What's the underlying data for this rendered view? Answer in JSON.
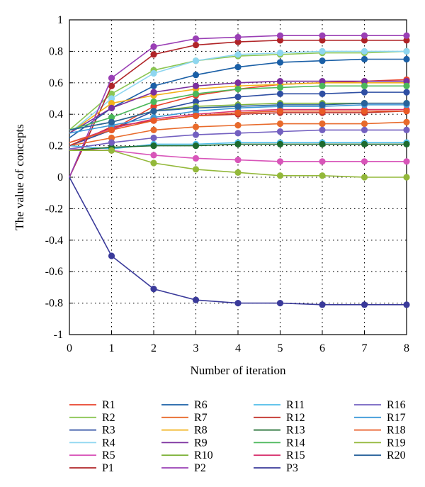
{
  "chart_data": {
    "type": "line",
    "xlabel": "Number of iteration",
    "ylabel": "The value of concepts",
    "xlim": [
      0,
      8
    ],
    "ylim": [
      -1,
      1
    ],
    "x": [
      0,
      1,
      2,
      3,
      4,
      5,
      6,
      7,
      8
    ],
    "x_ticks": [
      "0",
      "1",
      "2",
      "3",
      "4",
      "5",
      "6",
      "7",
      "8"
    ],
    "y_ticks": [
      "1",
      "0.8",
      "0.6",
      "0.4",
      "0.2",
      "0",
      "-0.2",
      "-0.4",
      "-0.6",
      "-0.8",
      "-1"
    ],
    "grid": "dotted",
    "legend_position": "bottom",
    "series": [
      {
        "name": "R1",
        "color": "#e8432b",
        "values": [
          0.2,
          0.3,
          0.45,
          0.52,
          0.56,
          0.59,
          0.6,
          0.61,
          0.62
        ]
      },
      {
        "name": "R2",
        "color": "#8bc653",
        "values": [
          0.3,
          0.53,
          0.68,
          0.74,
          0.77,
          0.78,
          0.79,
          0.79,
          0.8
        ]
      },
      {
        "name": "R3",
        "color": "#2f4fa3",
        "values": [
          0.2,
          0.3,
          0.42,
          0.48,
          0.51,
          0.53,
          0.53,
          0.54,
          0.54
        ]
      },
      {
        "name": "R4",
        "color": "#8ed6f0",
        "values": [
          0.28,
          0.5,
          0.66,
          0.74,
          0.78,
          0.79,
          0.8,
          0.8,
          0.8
        ]
      },
      {
        "name": "R5",
        "color": "#d855b9",
        "values": [
          0.18,
          0.17,
          0.14,
          0.12,
          0.11,
          0.1,
          0.1,
          0.1,
          0.1
        ]
      },
      {
        "name": "P1",
        "color": "#b02427",
        "values": [
          0.0,
          0.58,
          0.78,
          0.84,
          0.86,
          0.87,
          0.87,
          0.87,
          0.87
        ]
      },
      {
        "name": "R6",
        "color": "#1a5fa6",
        "values": [
          0.25,
          0.44,
          0.58,
          0.65,
          0.7,
          0.73,
          0.74,
          0.75,
          0.75
        ]
      },
      {
        "name": "R7",
        "color": "#e86a2b",
        "values": [
          0.2,
          0.25,
          0.3,
          0.32,
          0.33,
          0.34,
          0.34,
          0.34,
          0.35
        ]
      },
      {
        "name": "R8",
        "color": "#f2b21b",
        "values": [
          0.28,
          0.47,
          0.52,
          0.56,
          0.58,
          0.59,
          0.6,
          0.6,
          0.6
        ]
      },
      {
        "name": "R9",
        "color": "#7b2f9e",
        "values": [
          0.28,
          0.44,
          0.54,
          0.58,
          0.6,
          0.61,
          0.61,
          0.61,
          0.61
        ]
      },
      {
        "name": "R10",
        "color": "#7fb33b",
        "values": [
          0.3,
          0.35,
          0.42,
          0.45,
          0.46,
          0.47,
          0.47,
          0.47,
          0.47
        ]
      },
      {
        "name": "P2",
        "color": "#9a3fb5",
        "values": [
          0.0,
          0.63,
          0.83,
          0.88,
          0.89,
          0.9,
          0.9,
          0.9,
          0.9
        ]
      },
      {
        "name": "R11",
        "color": "#4fbde8",
        "values": [
          0.2,
          0.18,
          0.21,
          0.21,
          0.22,
          0.22,
          0.22,
          0.22,
          0.22
        ]
      },
      {
        "name": "R12",
        "color": "#c4342e",
        "values": [
          0.2,
          0.32,
          0.36,
          0.39,
          0.4,
          0.41,
          0.41,
          0.41,
          0.42
        ]
      },
      {
        "name": "R13",
        "color": "#1d6b2e",
        "values": [
          0.17,
          0.19,
          0.2,
          0.2,
          0.21,
          0.21,
          0.21,
          0.21,
          0.21
        ]
      },
      {
        "name": "R14",
        "color": "#4bb85a",
        "values": [
          0.3,
          0.38,
          0.48,
          0.53,
          0.56,
          0.57,
          0.58,
          0.58,
          0.58
        ]
      },
      {
        "name": "R15",
        "color": "#d8336f",
        "values": [
          0.22,
          0.31,
          0.37,
          0.4,
          0.42,
          0.43,
          0.43,
          0.43,
          0.43
        ]
      },
      {
        "name": "P3",
        "color": "#3a3a9a",
        "values": [
          0.0,
          -0.5,
          -0.71,
          -0.78,
          -0.8,
          -0.8,
          -0.81,
          -0.81,
          -0.81
        ]
      },
      {
        "name": "R16",
        "color": "#7360c0",
        "values": [
          0.18,
          0.22,
          0.25,
          0.27,
          0.28,
          0.29,
          0.3,
          0.3,
          0.3
        ]
      },
      {
        "name": "R17",
        "color": "#3e9ad8",
        "values": [
          0.28,
          0.33,
          0.38,
          0.42,
          0.44,
          0.45,
          0.45,
          0.46,
          0.46
        ]
      },
      {
        "name": "R18",
        "color": "#ea5a25",
        "values": [
          0.22,
          0.3,
          0.36,
          0.39,
          0.41,
          0.42,
          0.42,
          0.42,
          0.42
        ]
      },
      {
        "name": "R19",
        "color": "#93b83a",
        "values": [
          0.17,
          0.17,
          0.09,
          0.05,
          0.03,
          0.01,
          0.01,
          0.0,
          0.0
        ]
      },
      {
        "name": "R20",
        "color": "#28629b",
        "values": [
          0.3,
          0.35,
          0.42,
          0.44,
          0.45,
          0.46,
          0.46,
          0.47,
          0.47
        ]
      }
    ],
    "legend_columns": [
      [
        "R1",
        "R2",
        "R3",
        "R4",
        "R5",
        "P1"
      ],
      [
        "R6",
        "R7",
        "R8",
        "R9",
        "R10",
        "P2"
      ],
      [
        "R11",
        "R12",
        "R13",
        "R14",
        "R15",
        "P3"
      ],
      [
        "R16",
        "R17",
        "R18",
        "R19",
        "R20"
      ]
    ]
  }
}
